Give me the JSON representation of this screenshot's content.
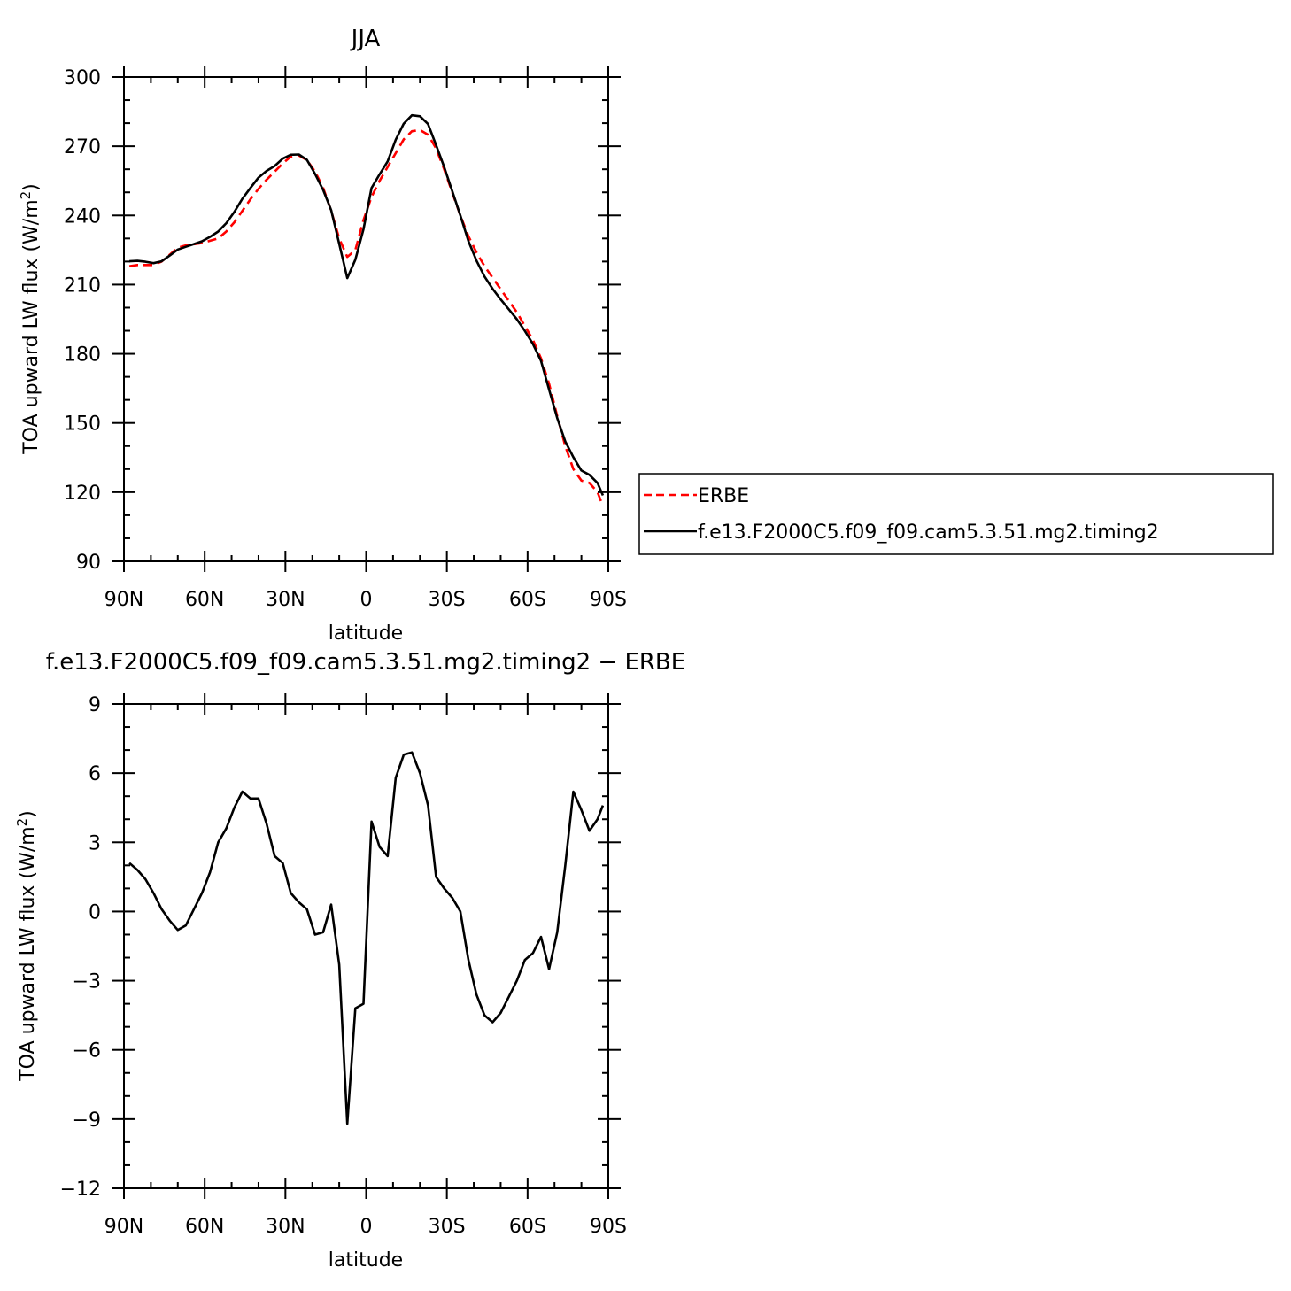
{
  "chart_data": [
    {
      "type": "line",
      "title": "JJA",
      "xlabel": "latitude",
      "ylabel": "TOA upward LW flux (W/m²)",
      "ylabel_main": "TOA upward LW flux (W/m",
      "ylabel_sup": "2",
      "ylabel_close": ")",
      "xlim": [
        -90,
        90
      ],
      "ylim": [
        90,
        300
      ],
      "xticks": [
        -90,
        -60,
        -30,
        0,
        30,
        60,
        90
      ],
      "xtick_labels": [
        "90N",
        "60N",
        "30N",
        "0",
        "30S",
        "60S",
        "90S"
      ],
      "yticks": [
        90,
        120,
        150,
        180,
        210,
        240,
        270,
        300
      ],
      "ytick_labels": [
        "90",
        "120",
        "150",
        "180",
        "210",
        "240",
        "270",
        "300"
      ],
      "legend": {
        "position": "right",
        "entries": [
          "ERBE",
          "f.e13.F2000C5.f09_f09.cam5.3.51.mg2.timing2"
        ]
      },
      "series": [
        {
          "name": "ERBE",
          "color": "#ff0000",
          "dash": "dashed",
          "x": [
            -88,
            -85,
            -82,
            -79,
            -76,
            -73,
            -70,
            -67,
            -64,
            -61,
            -58,
            -55,
            -52,
            -49,
            -46,
            -43,
            -40,
            -37,
            -34,
            -31,
            -28,
            -25,
            -22,
            -19,
            -16,
            -13,
            -10,
            -7,
            -4,
            -1,
            2,
            5,
            8,
            11,
            14,
            17,
            20,
            23,
            26,
            29,
            32,
            35,
            38,
            41,
            44,
            47,
            50,
            53,
            56,
            59,
            62,
            65,
            68,
            71,
            74,
            77,
            80,
            83,
            86,
            88
          ],
          "values": [
            218,
            218.5,
            218.5,
            218.5,
            220,
            223,
            226,
            227,
            227.5,
            228,
            229,
            230,
            233,
            237,
            242,
            247,
            251.5,
            255.5,
            259,
            262.5,
            265.5,
            266,
            264,
            259,
            252,
            242,
            230,
            222,
            225,
            238,
            248,
            255,
            261,
            267,
            273,
            276.5,
            277,
            275,
            269,
            260,
            250,
            240,
            231,
            224,
            218,
            213,
            208,
            203,
            198,
            192,
            186,
            178,
            167,
            153,
            140,
            130,
            125,
            124,
            120,
            114
          ]
        },
        {
          "name": "f.e13.F2000C5.f09_f09.cam5.3.51.mg2.timing2",
          "color": "#000000",
          "dash": "solid",
          "x": [
            -88,
            -85,
            -82,
            -79,
            -76,
            -73,
            -70,
            -67,
            -64,
            -61,
            -58,
            -55,
            -52,
            -49,
            -46,
            -43,
            -40,
            -37,
            -34,
            -31,
            -28,
            -25,
            -22,
            -19,
            -16,
            -13,
            -10,
            -7,
            -4,
            -1,
            2,
            5,
            8,
            11,
            14,
            17,
            20,
            23,
            26,
            29,
            32,
            35,
            38,
            41,
            44,
            47,
            50,
            53,
            56,
            59,
            62,
            65,
            68,
            71,
            74,
            77,
            80,
            83,
            86,
            88
          ],
          "values": [
            220.1,
            220.3,
            219.9,
            219.3,
            220.1,
            222.6,
            225.2,
            226.4,
            227.6,
            228.8,
            230.7,
            233.0,
            236.6,
            241.5,
            247.2,
            251.9,
            256.4,
            259.3,
            261.4,
            264.6,
            266.3,
            266.4,
            264.1,
            258.0,
            251.1,
            242.3,
            227.7,
            212.8,
            220.8,
            234.0,
            251.9,
            257.8,
            263.4,
            272.8,
            279.8,
            283.4,
            283.0,
            279.6,
            270.5,
            261.0,
            250.6,
            240.0,
            228.9,
            220.4,
            213.5,
            208.2,
            203.6,
            199.3,
            195.0,
            189.9,
            184.2,
            176.9,
            164.5,
            152.1,
            142.0,
            135.2,
            129.4,
            127.5,
            124.0,
            118.6
          ]
        }
      ]
    },
    {
      "type": "line",
      "title": "f.e13.F2000C5.f09_f09.cam5.3.51.mg2.timing2 − ERBE",
      "xlabel": "latitude",
      "ylabel": "TOA upward LW flux (W/m²)",
      "ylabel_main": "TOA upward LW flux (W/m",
      "ylabel_sup": "2",
      "ylabel_close": ")",
      "xlim": [
        -90,
        90
      ],
      "ylim": [
        -12,
        9
      ],
      "xticks": [
        -90,
        -60,
        -30,
        0,
        30,
        60,
        90
      ],
      "xtick_labels": [
        "90N",
        "60N",
        "30N",
        "0",
        "30S",
        "60S",
        "90S"
      ],
      "yticks": [
        -12,
        -9,
        -6,
        -3,
        0,
        3,
        6,
        9
      ],
      "ytick_labels": [
        "−12",
        "−9",
        "−6",
        "−3",
        "0",
        "3",
        "6",
        "9"
      ],
      "series": [
        {
          "color": "#000000",
          "dash": "solid",
          "x": [
            -88,
            -85,
            -82,
            -79,
            -76,
            -73,
            -70,
            -67,
            -64,
            -61,
            -58,
            -55,
            -52,
            -49,
            -46,
            -43,
            -40,
            -37,
            -34,
            -31,
            -28,
            -25,
            -22,
            -19,
            -16,
            -13,
            -10,
            -7,
            -4,
            -1,
            2,
            5,
            8,
            11,
            14,
            17,
            20,
            23,
            26,
            29,
            32,
            35,
            38,
            41,
            44,
            47,
            50,
            53,
            56,
            59,
            62,
            65,
            68,
            71,
            74,
            77,
            80,
            83,
            86,
            88
          ],
          "values": [
            2.1,
            1.8,
            1.4,
            0.8,
            0.1,
            -0.4,
            -0.8,
            -0.6,
            0.1,
            0.8,
            1.7,
            3.0,
            3.6,
            4.5,
            5.2,
            4.9,
            4.9,
            3.8,
            2.4,
            2.1,
            0.8,
            0.4,
            0.1,
            -1.0,
            -0.9,
            0.3,
            -2.3,
            -9.2,
            -4.2,
            -4.0,
            3.9,
            2.8,
            2.4,
            5.8,
            6.8,
            6.9,
            6.0,
            4.6,
            1.5,
            1.0,
            0.6,
            0.0,
            -2.1,
            -3.6,
            -4.5,
            -4.8,
            -4.4,
            -3.7,
            -3.0,
            -2.1,
            -1.8,
            -1.1,
            -2.5,
            -0.9,
            2.0,
            5.2,
            4.4,
            3.5,
            4.0,
            4.6
          ]
        }
      ]
    }
  ]
}
